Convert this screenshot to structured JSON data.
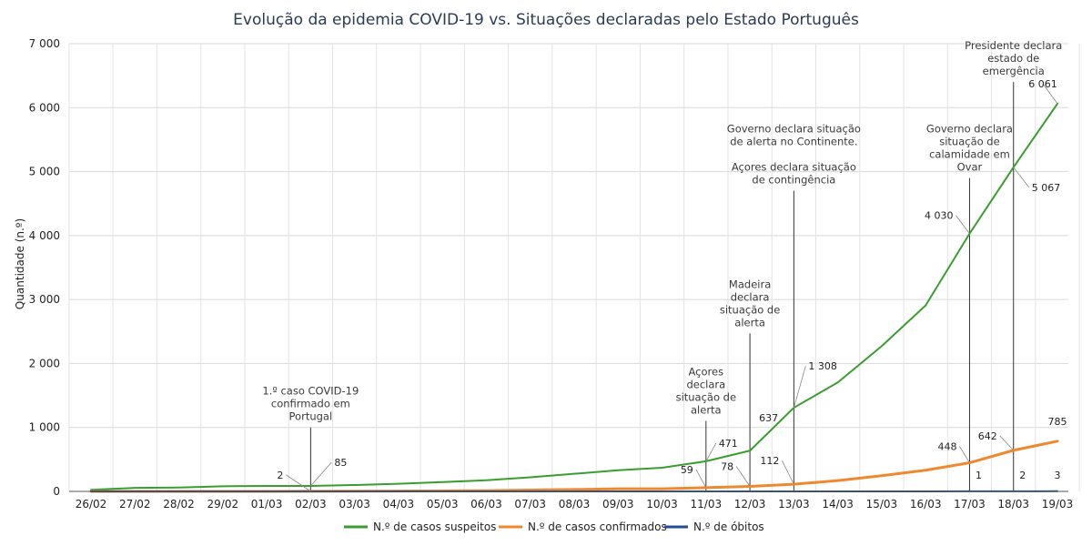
{
  "chart_data": {
    "type": "line",
    "title": "Evolução da epidemia COVID-19 vs. Situações declaradas pelo Estado Português",
    "xlabel": "",
    "ylabel": "Quantidade (n.º)",
    "ylim": [
      0,
      7000
    ],
    "yticks": [
      0,
      1000,
      2000,
      3000,
      4000,
      5000,
      6000,
      7000
    ],
    "ytick_labels": [
      "0",
      "1 000",
      "2 000",
      "3 000",
      "4 000",
      "5 000",
      "6 000",
      "7 000"
    ],
    "categories": [
      "26/02",
      "27/02",
      "28/02",
      "29/02",
      "01/03",
      "02/03",
      "03/03",
      "04/03",
      "05/03",
      "06/03",
      "07/03",
      "08/03",
      "09/03",
      "10/03",
      "11/03",
      "12/03",
      "13/03",
      "14/03",
      "15/03",
      "16/03",
      "17/03",
      "18/03",
      "19/03"
    ],
    "grid": true,
    "legend_position": "bottom",
    "series": [
      {
        "name": "N.º de casos suspeitos",
        "color": "#3a9e2f",
        "values": [
          25,
          55,
          60,
          80,
          85,
          85,
          100,
          120,
          145,
          175,
          220,
          275,
          330,
          370,
          471,
          637,
          1308,
          1704,
          2271,
          2908,
          4030,
          5067,
          6061
        ]
      },
      {
        "name": "N.º de casos confirmados",
        "color": "#f0892e",
        "values": [
          0,
          0,
          0,
          0,
          0,
          2,
          4,
          6,
          9,
          13,
          21,
          30,
          41,
          41,
          59,
          78,
          112,
          169,
          245,
          331,
          448,
          642,
          785
        ]
      },
      {
        "name": "N.º de óbitos",
        "color": "#1f4e96",
        "values": [
          0,
          0,
          0,
          0,
          0,
          0,
          0,
          0,
          0,
          0,
          0,
          0,
          0,
          0,
          0,
          0,
          0,
          0,
          0,
          0,
          1,
          2,
          3
        ]
      }
    ],
    "data_labels": [
      {
        "series": 0,
        "index": 5,
        "text": "85"
      },
      {
        "series": 0,
        "index": 14,
        "text": "471"
      },
      {
        "series": 0,
        "index": 15,
        "text": "637"
      },
      {
        "series": 0,
        "index": 16,
        "text": "1 308"
      },
      {
        "series": 0,
        "index": 20,
        "text": "4 030"
      },
      {
        "series": 0,
        "index": 21,
        "text": "5 067"
      },
      {
        "series": 0,
        "index": 22,
        "text": "6 061"
      },
      {
        "series": 1,
        "index": 5,
        "text": "2"
      },
      {
        "series": 1,
        "index": 14,
        "text": "59"
      },
      {
        "series": 1,
        "index": 15,
        "text": "78"
      },
      {
        "series": 1,
        "index": 16,
        "text": "112"
      },
      {
        "series": 1,
        "index": 20,
        "text": "448"
      },
      {
        "series": 1,
        "index": 21,
        "text": "642"
      },
      {
        "series": 1,
        "index": 22,
        "text": "785"
      },
      {
        "series": 2,
        "index": 20,
        "text": "1"
      },
      {
        "series": 2,
        "index": 21,
        "text": "2"
      },
      {
        "series": 2,
        "index": 22,
        "text": "3"
      }
    ],
    "annotations": [
      {
        "index": 5,
        "value": 1000,
        "lines": [
          "1.º caso COVID-19",
          "confirmado em",
          "Portugal"
        ]
      },
      {
        "index": 14,
        "value": 1100,
        "lines": [
          "Açores",
          "declara",
          "situação de",
          "alerta"
        ]
      },
      {
        "index": 15,
        "value": 2470,
        "lines": [
          "Madeira",
          "declara",
          "situação de",
          "alerta"
        ]
      },
      {
        "index": 16,
        "value": 4700,
        "lines": [
          "Governo declara situação",
          "de alerta no Continente.",
          "",
          "Açores declara situação",
          "de contingência"
        ]
      },
      {
        "index": 20,
        "value": 4900,
        "lines": [
          "Governo declara",
          "situação de",
          "calamidade em",
          "Ovar"
        ]
      },
      {
        "index": 21,
        "value": 6400,
        "lines": [
          "Presidente declara",
          "estado de",
          "emergência"
        ]
      }
    ]
  }
}
